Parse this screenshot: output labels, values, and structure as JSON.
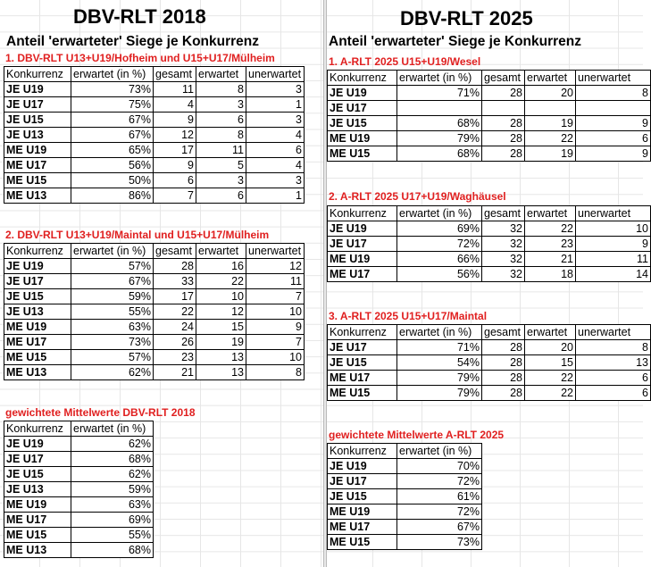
{
  "left": {
    "title": "DBV-RLT 2018",
    "subtitle": "Anteil 'erwarteter' Siege je Konkurrenz",
    "sections": [
      {
        "heading": "1. DBV-RLT U13+U19/Hofheim und U15+U17/Mülheim",
        "columns": [
          "Konkurrenz",
          "erwartet (in %)",
          "gesamt",
          "erwartet",
          "unerwartet"
        ],
        "rows": [
          [
            "JE U19",
            "73%",
            "11",
            "8",
            "3"
          ],
          [
            "JE U17",
            "75%",
            "4",
            "3",
            "1"
          ],
          [
            "JE U15",
            "67%",
            "9",
            "6",
            "3"
          ],
          [
            "JE U13",
            "67%",
            "12",
            "8",
            "4"
          ],
          [
            "ME U19",
            "65%",
            "17",
            "11",
            "6"
          ],
          [
            "ME U17",
            "56%",
            "9",
            "5",
            "4"
          ],
          [
            "ME U15",
            "50%",
            "6",
            "3",
            "3"
          ],
          [
            "ME U13",
            "86%",
            "7",
            "6",
            "1"
          ]
        ]
      },
      {
        "heading": "2. DBV-RLT U13+U19/Maintal und U15+U17/Mülheim",
        "columns": [
          "Konkurrenz",
          "erwartet (in %)",
          "gesamt",
          "erwartet",
          "unerwartet"
        ],
        "rows": [
          [
            "JE U19",
            "57%",
            "28",
            "16",
            "12"
          ],
          [
            "JE U17",
            "67%",
            "33",
            "22",
            "11"
          ],
          [
            "JE U15",
            "59%",
            "17",
            "10",
            "7"
          ],
          [
            "JE U13",
            "55%",
            "22",
            "12",
            "10"
          ],
          [
            "ME U19",
            "63%",
            "24",
            "15",
            "9"
          ],
          [
            "ME U17",
            "73%",
            "26",
            "19",
            "7"
          ],
          [
            "ME U15",
            "57%",
            "23",
            "13",
            "10"
          ],
          [
            "ME U13",
            "62%",
            "21",
            "13",
            "8"
          ]
        ]
      },
      {
        "heading": "gewichtete Mittelwerte DBV-RLT 2018",
        "columns": [
          "Konkurrenz",
          "erwartet (in %)"
        ],
        "rows": [
          [
            "JE U19",
            "62%"
          ],
          [
            "JE U17",
            "68%"
          ],
          [
            "JE U15",
            "62%"
          ],
          [
            "JE U13",
            "59%"
          ],
          [
            "ME U19",
            "63%"
          ],
          [
            "ME U17",
            "69%"
          ],
          [
            "ME U15",
            "55%"
          ],
          [
            "ME U13",
            "68%"
          ]
        ]
      }
    ]
  },
  "right": {
    "title": "DBV-RLT 2025",
    "subtitle": "Anteil 'erwarteter' Siege je Konkurrenz",
    "sections": [
      {
        "heading": "1. A-RLT 2025 U15+U19/Wesel",
        "columns": [
          "Konkurrenz",
          "erwartet (in %)",
          "gesamt",
          "erwartet",
          "unerwartet"
        ],
        "rows": [
          [
            "JE U19",
            "71%",
            "28",
            "20",
            "8"
          ],
          [
            "JE U17",
            "",
            "",
            "",
            ""
          ],
          [
            "JE U15",
            "68%",
            "28",
            "19",
            "9"
          ],
          [
            "ME U19",
            "79%",
            "28",
            "22",
            "6"
          ],
          [
            "ME U15",
            "68%",
            "28",
            "19",
            "9"
          ]
        ]
      },
      {
        "heading": "2. A-RLT 2025 U17+U19/Waghäusel",
        "columns": [
          "Konkurrenz",
          "erwartet (in %)",
          "gesamt",
          "erwartet",
          "unerwartet"
        ],
        "rows": [
          [
            "JE U19",
            "69%",
            "32",
            "22",
            "10"
          ],
          [
            "JE U17",
            "72%",
            "32",
            "23",
            "9"
          ],
          [
            "ME U19",
            "66%",
            "32",
            "21",
            "11"
          ],
          [
            "ME U17",
            "56%",
            "32",
            "18",
            "14"
          ]
        ]
      },
      {
        "heading": "3. A-RLT 2025 U15+U17/Maintal",
        "columns": [
          "Konkurrenz",
          "erwartet (in %)",
          "gesamt",
          "erwartet",
          "unerwartet"
        ],
        "rows": [
          [
            "JE U17",
            "71%",
            "28",
            "20",
            "8"
          ],
          [
            "JE U15",
            "54%",
            "28",
            "15",
            "13"
          ],
          [
            "ME U17",
            "79%",
            "28",
            "22",
            "6"
          ],
          [
            "ME U15",
            "79%",
            "28",
            "22",
            "6"
          ]
        ]
      },
      {
        "heading": "gewichtete Mittelwerte A-RLT 2025",
        "columns": [
          "Konkurrenz",
          "erwartet (in %)"
        ],
        "rows": [
          [
            "JE U19",
            "70%"
          ],
          [
            "JE U17",
            "72%"
          ],
          [
            "JE U15",
            "61%"
          ],
          [
            "ME U19",
            "72%"
          ],
          [
            "ME U17",
            "67%"
          ],
          [
            "ME U15",
            "73%"
          ]
        ]
      }
    ]
  }
}
